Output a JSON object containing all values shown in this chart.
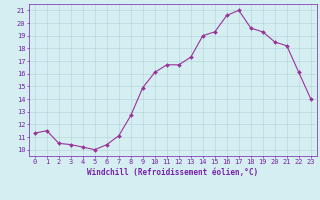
{
  "x": [
    0,
    1,
    2,
    3,
    4,
    5,
    6,
    7,
    8,
    9,
    10,
    11,
    12,
    13,
    14,
    15,
    16,
    17,
    18,
    19,
    20,
    21,
    22,
    23
  ],
  "y": [
    11.3,
    11.5,
    10.5,
    10.4,
    10.2,
    10.0,
    10.4,
    11.1,
    12.7,
    14.9,
    16.1,
    16.7,
    16.7,
    17.3,
    19.0,
    19.3,
    20.6,
    21.0,
    19.6,
    19.3,
    18.5,
    18.2,
    16.1,
    14.0
  ],
  "line_color": "#993399",
  "marker_color": "#993399",
  "bg_color": "#d5eef2",
  "grid_color": "#b8d8de",
  "xlabel": "Windchill (Refroidissement éolien,°C)",
  "ylim": [
    9.5,
    21.5
  ],
  "xlim": [
    -0.5,
    23.5
  ],
  "yticks": [
    10,
    11,
    12,
    13,
    14,
    15,
    16,
    17,
    18,
    19,
    20,
    21
  ],
  "xticks": [
    0,
    1,
    2,
    3,
    4,
    5,
    6,
    7,
    8,
    9,
    10,
    11,
    12,
    13,
    14,
    15,
    16,
    17,
    18,
    19,
    20,
    21,
    22,
    23
  ],
  "label_color": "#7722aa",
  "tick_color": "#7722aa",
  "font_name": "monospace",
  "xlabel_fontsize": 5.5,
  "tick_fontsize": 5.0,
  "line_width": 0.8,
  "marker_size": 2.0
}
